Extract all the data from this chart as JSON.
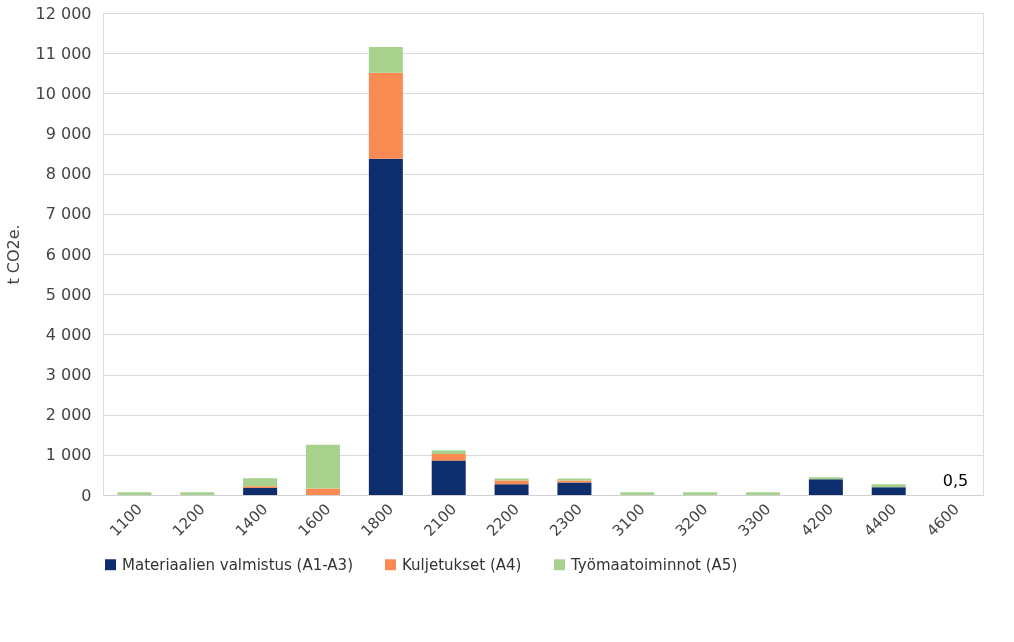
{
  "chart_data": {
    "type": "bar",
    "stacked": true,
    "ylabel": "t CO2e.",
    "categories": [
      "1100",
      "1200",
      "1400",
      "1600",
      "1800",
      "2100",
      "2200",
      "2300",
      "3100",
      "3200",
      "3300",
      "4200",
      "4400",
      "4600"
    ],
    "series": [
      {
        "name": "Materiaalien valmistus (A1-A3)",
        "color": "#0d2d6c",
        "values": [
          0,
          0,
          175,
          0,
          8370,
          860,
          265,
          310,
          0,
          0,
          0,
          395,
          195,
          0.5
        ]
      },
      {
        "name": "Kuljetukset (A4)",
        "color": "#f98b52",
        "values": [
          0,
          0,
          40,
          160,
          2140,
          160,
          95,
          50,
          0,
          0,
          0,
          0,
          0,
          0
        ]
      },
      {
        "name": "Työmaatoiminnot (A5)",
        "color": "#a9d18e",
        "values": [
          70,
          70,
          205,
          1090,
          645,
          90,
          50,
          50,
          70,
          70,
          70,
          50,
          70,
          0
        ]
      }
    ],
    "ylim": [
      0,
      12000
    ],
    "yticks": [
      0,
      {
        "value": 1000,
        "label": "1 000"
      },
      {
        "value": 2000,
        "label": "2 000"
      },
      {
        "value": 3000,
        "label": "3 000"
      },
      {
        "value": 4000,
        "label": "4 000"
      },
      {
        "value": 5000,
        "label": "5 000"
      },
      {
        "value": 6000,
        "label": "6 000"
      },
      {
        "value": 7000,
        "label": "7 000"
      },
      {
        "value": 8000,
        "label": "8 000"
      },
      {
        "value": 9000,
        "label": "9 000"
      },
      {
        "value": 10000,
        "label": "10 000"
      },
      {
        "value": 11000,
        "label": "11 000"
      },
      {
        "value": 12000,
        "label": "12 000"
      }
    ],
    "annotations": [
      {
        "text": "0,5",
        "x": "4600",
        "y": 0.5
      }
    ],
    "grid": "y",
    "legend": "bottom"
  }
}
